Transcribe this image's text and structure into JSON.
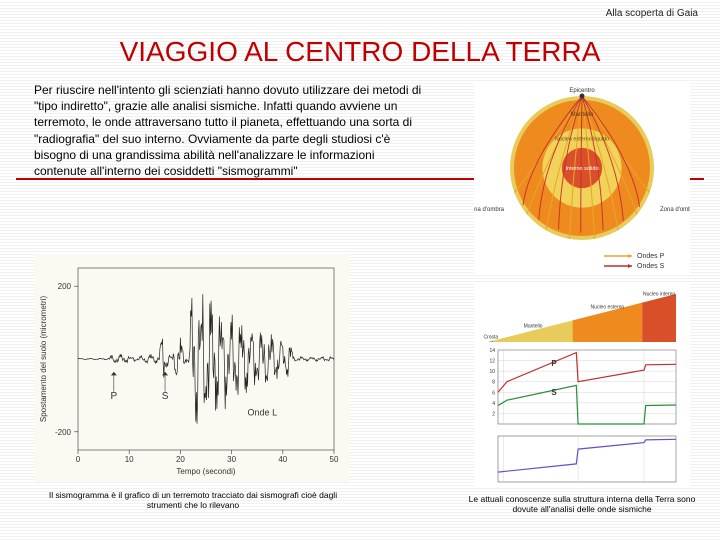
{
  "header": {
    "text": "Alla scoperta di Gaia"
  },
  "title": "VIAGGIO AL CENTRO DELLA TERRA",
  "paragraph": "Per riuscire nell'intento gli scienziati hanno dovuto utilizzare dei metodi di \"tipo indiretto\", grazie alle analisi sismiche. Infatti quando avviene un terremoto, le onde attraversano tutto il pianeta, effettuando una sorta di \"radiografia\" del suo interno. Ovviamente da parte degli studiosi c'è bisogno di una grandissima abilità nell'analizzare le informazioni contenute all'interno dei cosiddetti \"sismogrammi\"",
  "seismo_caption": "Il sismogramma è il grafico di un terremoto tracciato dai sismografi cioè dagli strumenti che lo rilevano",
  "layers_caption": "Le attuali conoscenze sulla struttura interna della Terra sono dovute all'analisi delle onde sismiche",
  "seismogram": {
    "type": "line",
    "background_color": "#fafaf3",
    "axis_color": "#333333",
    "trace_color": "#222222",
    "xlabel": "Tempo (secondi)",
    "ylabel": "Spostamento del suolo (micrometri)",
    "xlim": [
      0,
      50
    ],
    "xtick_step": 10,
    "ylim": [
      -250,
      250
    ],
    "yticks": [
      -200,
      200
    ],
    "markers": [
      {
        "label": "P",
        "x": 7
      },
      {
        "label": "S",
        "x": 17
      }
    ],
    "l_label": {
      "text": "Onde L",
      "x": 36
    },
    "label_fontsize": 8
  },
  "earth_diagram": {
    "type": "infographic",
    "background_color": "#ffffff",
    "crust_color": "#e8cc5b",
    "mantle_color": "#ef8a1f",
    "outer_core_color": "#f2d35a",
    "inner_core_color": "#d94f2a",
    "wave_p_color": "#e6a62e",
    "wave_s_color": "#c22d2d",
    "text_color": "#333333",
    "epicenter_label": "Epicentro",
    "mantle_label": "Mantello",
    "outer_core_label": "Nucleo esterno liquido",
    "inner_core_label": "Interno solido",
    "shadow_label": "Zona d'ombra",
    "legend_p": "Ondes P",
    "legend_s": "Ondes S",
    "label_fontsize": 6
  },
  "layers_diagram": {
    "type": "line",
    "background_color": "#ffffff",
    "axis_color": "#444444",
    "layers": [
      {
        "name": "Crosta",
        "color": "#7fae5a",
        "end": 0.03
      },
      {
        "name": "Mantello",
        "color": "#e8cc5b",
        "end": 0.45
      },
      {
        "name": "Nucleo esterno",
        "color": "#ef8a1f",
        "end": 0.82
      },
      {
        "name": "Nucleo interno",
        "color": "#d94f2a",
        "end": 1.0
      }
    ],
    "wedge_label_font": 5,
    "velocity_chart": {
      "p_color": "#c22d2d",
      "s_color": "#2a8f3a",
      "p_label": "P",
      "s_label": "S",
      "grid_color": "#bbbbbb",
      "yticks": [
        2,
        4,
        6,
        8,
        10,
        12,
        14
      ],
      "p_points": [
        [
          0,
          6
        ],
        [
          0.05,
          8
        ],
        [
          0.44,
          13.5
        ],
        [
          0.45,
          8
        ],
        [
          0.82,
          10.2
        ],
        [
          0.83,
          11.2
        ],
        [
          1,
          11.3
        ]
      ],
      "s_points": [
        [
          0,
          3.5
        ],
        [
          0.05,
          4.5
        ],
        [
          0.44,
          7.3
        ],
        [
          0.45,
          0
        ],
        [
          0.82,
          0
        ],
        [
          0.83,
          3.5
        ],
        [
          1,
          3.6
        ]
      ]
    },
    "density_chart": {
      "color": "#6a4fc2",
      "grid_color": "#bbbbbb",
      "points": [
        [
          0,
          3
        ],
        [
          0.44,
          5.5
        ],
        [
          0.45,
          10
        ],
        [
          0.82,
          12
        ],
        [
          0.83,
          12.8
        ],
        [
          1,
          13
        ]
      ]
    }
  }
}
